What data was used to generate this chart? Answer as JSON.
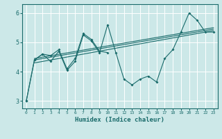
{
  "xlabel": "Humidex (Indice chaleur)",
  "bg_color": "#cce8e8",
  "line_color": "#1a6b6b",
  "grid_color": "#ffffff",
  "xlim": [
    -0.5,
    23.5
  ],
  "ylim": [
    2.75,
    6.3
  ],
  "yticks": [
    3,
    4,
    5,
    6
  ],
  "xtick_labels": [
    "0",
    "1",
    "2",
    "3",
    "4",
    "5",
    "6",
    "7",
    "8",
    "9",
    "10",
    "11",
    "12",
    "13",
    "14",
    "15",
    "16",
    "17",
    "18",
    "19",
    "20",
    "21",
    "22",
    "23"
  ],
  "line_main": [
    3.0,
    4.4,
    4.6,
    4.35,
    4.7,
    4.05,
    4.35,
    5.25,
    5.05,
    4.65,
    5.6,
    4.65,
    3.75,
    3.55,
    3.75,
    3.85,
    3.65,
    4.45,
    4.75,
    5.35,
    6.0,
    5.75,
    5.35,
    5.35
  ],
  "line2": [
    3.0,
    4.4,
    4.6,
    4.55,
    4.75,
    4.1,
    4.45,
    5.3,
    5.1,
    4.7,
    4.65,
    null,
    null,
    null,
    null,
    null,
    null,
    null,
    null,
    null,
    null,
    null,
    null,
    null
  ],
  "trend_lines": [
    {
      "x": [
        1,
        23
      ],
      "y": [
        4.3,
        5.4
      ]
    },
    {
      "x": [
        1,
        23
      ],
      "y": [
        4.4,
        5.45
      ]
    },
    {
      "x": [
        1,
        23
      ],
      "y": [
        4.45,
        5.5
      ]
    }
  ]
}
